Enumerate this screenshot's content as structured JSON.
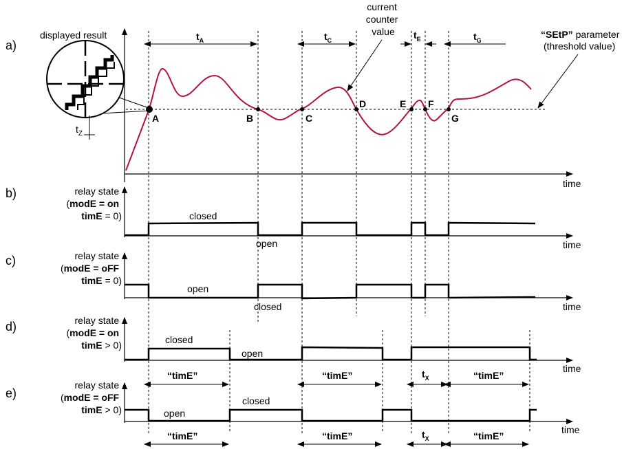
{
  "colors": {
    "curve": "#b0134a",
    "ink": "#000000"
  },
  "panels": {
    "a": "a)",
    "b": "b)",
    "c": "c)",
    "d": "d)",
    "e": "e)"
  },
  "axes": {
    "y_a": "displayed result",
    "time": "time"
  },
  "labels": {
    "current_counter": [
      "current",
      "counter",
      "value"
    ],
    "setp_name": "“SEtP”",
    "setp_rest": " parameter",
    "threshold": "(threshold value)",
    "t": "t",
    "tz_sub": "Z",
    "t_subs": {
      "a": "A",
      "c": "C",
      "e": "E",
      "g": "G",
      "x": "X"
    },
    "points": [
      "A",
      "B",
      "C",
      "D",
      "E",
      "F",
      "G"
    ]
  },
  "relay": {
    "relay_state": "relay state",
    "b": {
      "l2_pre": "(",
      "l2_bold": "modE = on",
      "l3_bold": "timE",
      "l3_rest": "  =  0)",
      "closed": "closed",
      "open": "open"
    },
    "c": {
      "l2_pre": "(",
      "l2_bold": "modE = oFF",
      "l3_bold": "timE",
      "l3_rest": "  =  0)",
      "open": "open",
      "closed": "closed"
    },
    "d": {
      "l2_pre": "(",
      "l2_bold": "modE = on",
      "l3_bold": "timE",
      "l3_rest": "  >  0)",
      "closed": "closed",
      "open": "open"
    },
    "e": {
      "l2_pre": "(",
      "l2_bold": "modE = oFF",
      "l3_bold": "timE",
      "l3_rest": "  >  0)",
      "open": "open",
      "closed": "closed"
    },
    "time_label": "“timE”"
  }
}
